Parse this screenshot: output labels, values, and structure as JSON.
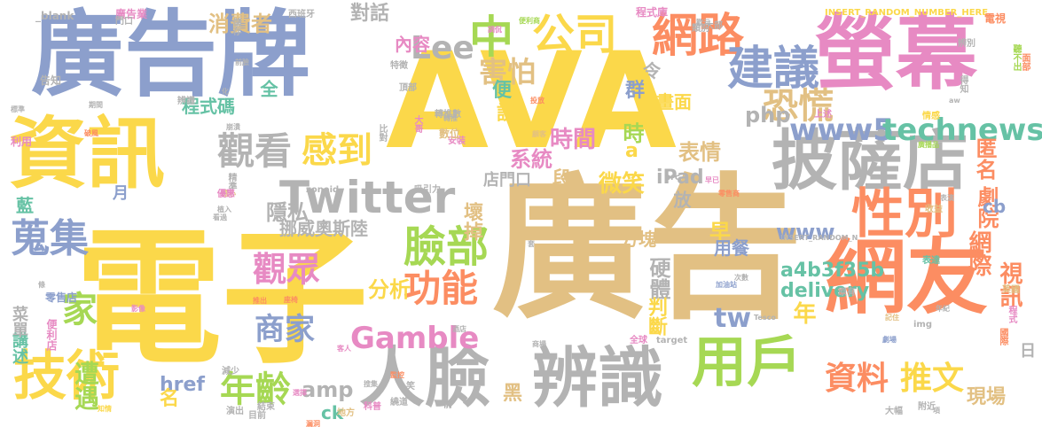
{
  "palette": {
    "blue": "#8c9fcc",
    "yellow": "#fbd84a",
    "tan": "#e2c083",
    "pink": "#e78ac3",
    "orange": "#fc8d62",
    "green": "#a6d854",
    "teal": "#66c2a5",
    "gray": "#b3b3b3"
  },
  "words": [
    {
      "text": "AVA",
      "color": "yellow"
    },
    {
      "text": "廣告",
      "color": "tan"
    },
    {
      "text": "電子",
      "color": "yellow"
    },
    {
      "text": "廣告牌",
      "color": "blue"
    },
    {
      "text": "資訊",
      "color": "yellow"
    },
    {
      "text": "螢幕",
      "color": "pink"
    },
    {
      "text": "網友",
      "color": "orange"
    },
    {
      "text": "人臉",
      "color": "gray"
    },
    {
      "text": "辨識",
      "color": "gray"
    },
    {
      "text": "披薩店",
      "color": "gray"
    },
    {
      "text": "Twitter",
      "color": "gray"
    },
    {
      "text": "技術",
      "color": "yellow"
    },
    {
      "text": "用戶",
      "color": "green"
    },
    {
      "text": "性別",
      "color": "orange"
    },
    {
      "text": "網路",
      "color": "orange"
    },
    {
      "text": "建議",
      "color": "blue"
    },
    {
      "text": "公司",
      "color": "yellow"
    },
    {
      "text": "觀看",
      "color": "gray"
    },
    {
      "text": "感到",
      "color": "yellow"
    },
    {
      "text": "蒐集",
      "color": "blue"
    },
    {
      "text": "家",
      "color": "green"
    },
    {
      "text": "臉部",
      "color": "green"
    },
    {
      "text": "觀眾",
      "color": "pink"
    },
    {
      "text": "功能",
      "color": "orange"
    },
    {
      "text": "商家",
      "color": "blue"
    },
    {
      "text": "年齡",
      "color": "green"
    },
    {
      "text": "資料",
      "color": "orange"
    },
    {
      "text": "推文",
      "color": "yellow"
    },
    {
      "text": "Gamble",
      "color": "pink"
    },
    {
      "text": "www5",
      "color": "blue"
    },
    {
      "text": "technews",
      "color": "teal"
    },
    {
      "text": "中",
      "color": "green"
    },
    {
      "text": "Lee",
      "color": "gray"
    },
    {
      "text": "恐慌",
      "color": "tan"
    },
    {
      "text": "消費者",
      "color": "tan"
    },
    {
      "text": "害怕",
      "color": "tan"
    },
    {
      "text": "時間",
      "color": "pink"
    },
    {
      "text": "內容",
      "color": "pink"
    },
    {
      "text": "對話",
      "color": "gray"
    },
    {
      "text": "php",
      "color": "gray"
    },
    {
      "text": "隱私",
      "color": "gray"
    },
    {
      "text": "系統",
      "color": "pink"
    },
    {
      "text": "微笑",
      "color": "yellow"
    },
    {
      "text": "表情",
      "color": "tan"
    },
    {
      "text": "匿名",
      "color": "orange"
    },
    {
      "text": "劇院",
      "color": "orange"
    },
    {
      "text": "iPad",
      "color": "gray"
    },
    {
      "text": "店門口",
      "color": "gray"
    },
    {
      "text": "挪威奧斯陸",
      "color": "gray"
    },
    {
      "text": "www",
      "color": "blue"
    },
    {
      "text": "cb",
      "color": "blue"
    },
    {
      "text": "網際",
      "color": "orange"
    },
    {
      "text": "a4b3f35b",
      "color": "teal"
    },
    {
      "text": "delivery",
      "color": "teal"
    },
    {
      "text": "視訊",
      "color": "orange"
    },
    {
      "text": "分析",
      "color": "yellow"
    },
    {
      "text": "硬體",
      "color": "gray"
    },
    {
      "text": "判斷",
      "color": "yellow"
    },
    {
      "text": "tw",
      "color": "blue"
    },
    {
      "text": "年",
      "color": "yellow"
    },
    {
      "text": "amp",
      "color": "gray"
    },
    {
      "text": "href",
      "color": "blue"
    },
    {
      "text": "名",
      "color": "yellow"
    },
    {
      "text": "ck",
      "color": "teal"
    },
    {
      "text": "黑",
      "color": "tan"
    },
    {
      "text": "現場",
      "color": "tan"
    },
    {
      "text": "遭遇",
      "color": "green"
    },
    {
      "text": "講述",
      "color": "teal"
    },
    {
      "text": "菜單",
      "color": "gray"
    },
    {
      "text": "程式碼",
      "color": "teal"
    },
    {
      "text": "早",
      "color": "yellow"
    },
    {
      "text": "用餐",
      "color": "blue"
    },
    {
      "text": "方塊",
      "color": "tan"
    },
    {
      "text": "壞掉",
      "color": "tan"
    },
    {
      "text": "放",
      "color": "gray"
    },
    {
      "text": "段",
      "color": "tan"
    },
    {
      "text": "a",
      "color": "yellow"
    },
    {
      "text": "時",
      "color": "green"
    },
    {
      "text": "說",
      "color": "yellow"
    },
    {
      "text": "便",
      "color": "teal"
    },
    {
      "text": "群",
      "color": "blue"
    },
    {
      "text": "令",
      "color": "gray"
    },
    {
      "text": "畫面",
      "color": "yellow"
    },
    {
      "text": "全",
      "color": "teal"
    },
    {
      "text": "藍",
      "color": "teal"
    },
    {
      "text": "月",
      "color": "blue"
    },
    {
      "text": "日",
      "color": "gray"
    },
    {
      "text": "n",
      "color": "blue"
    },
    {
      "text": "zoneid",
      "color": "gray"
    },
    {
      "text": "src",
      "color": "gray"
    },
    {
      "text": "img",
      "color": "gray"
    },
    {
      "text": "target",
      "color": "gray"
    },
    {
      "text": "_blank",
      "color": "gray"
    },
    {
      "text": "INSERT_RANDOM_NUMBER_HERE",
      "color": "yellow"
    },
    {
      "text": "INSERT_RANDOM_N",
      "color": "gray"
    },
    {
      "text": "Tesco",
      "color": "gray"
    },
    {
      "text": "aw",
      "color": "gray"
    },
    {
      "text": "程式庫",
      "color": "pink"
    },
    {
      "text": "廣告業",
      "color": "pink"
    },
    {
      "text": "西班牙",
      "color": "gray"
    },
    {
      "text": "轉推數",
      "color": "gray"
    },
    {
      "text": "吸引力",
      "color": "gray"
    },
    {
      "text": "加油站",
      "color": "blue"
    },
    {
      "text": "便利店",
      "color": "pink"
    },
    {
      "text": "零售商",
      "color": "orange"
    },
    {
      "text": "零售店",
      "color": "blue"
    },
    {
      "text": "便利商",
      "color": "green"
    },
    {
      "text": "廣播品",
      "color": "green"
    },
    {
      "text": "次數",
      "color": "gray"
    },
    {
      "text": "記住",
      "color": "tan"
    },
    {
      "text": "劇場",
      "color": "blue"
    },
    {
      "text": "年紀",
      "color": "gray"
    },
    {
      "text": "電視",
      "color": "orange"
    },
    {
      "text": "聽不出",
      "color": "green"
    },
    {
      "text": "面部",
      "color": "orange"
    },
    {
      "text": "辨別",
      "color": "gray"
    },
    {
      "text": "得知",
      "color": "gray"
    },
    {
      "text": "情感",
      "color": "yellow"
    },
    {
      "text": "上述",
      "color": "pink"
    },
    {
      "text": "投放",
      "color": "orange"
    },
    {
      "text": "標準",
      "color": "gray"
    },
    {
      "text": "利用",
      "color": "pink"
    },
    {
      "text": "破風",
      "color": "orange"
    },
    {
      "text": "收益",
      "color": "tan"
    },
    {
      "text": "表演",
      "color": "gray"
    },
    {
      "text": "表達",
      "color": "teal"
    },
    {
      "text": "英國",
      "color": "tan"
    },
    {
      "text": "程式",
      "color": "pink"
    },
    {
      "text": "國際",
      "color": "orange"
    },
    {
      "text": "推出",
      "color": "orange"
    },
    {
      "text": "客人",
      "color": "pink"
    },
    {
      "text": "監控",
      "color": "orange"
    },
    {
      "text": "影像",
      "color": "pink"
    },
    {
      "text": "搜集",
      "color": "gray"
    },
    {
      "text": "知情",
      "color": "yellow"
    },
    {
      "text": "結束",
      "color": "gray"
    },
    {
      "text": "演出",
      "color": "gray"
    },
    {
      "text": "地方",
      "color": "tan"
    },
    {
      "text": "目前",
      "color": "gray"
    },
    {
      "text": "漏洞",
      "color": "orange"
    },
    {
      "text": "大幅",
      "color": "gray"
    },
    {
      "text": "選擇",
      "color": "pink"
    },
    {
      "text": "全球",
      "color": "pink"
    },
    {
      "text": "商場",
      "color": "gray"
    },
    {
      "text": "酒店",
      "color": "gray"
    },
    {
      "text": "特徵",
      "color": "gray"
    },
    {
      "text": "頂部",
      "color": "gray"
    },
    {
      "text": "前臉",
      "color": "gray"
    },
    {
      "text": "告知",
      "color": "gray"
    },
    {
      "text": "辨識",
      "color": "gray"
    },
    {
      "text": "期間",
      "color": "gray"
    },
    {
      "text": "顧客",
      "color": "tan"
    },
    {
      "text": "附近",
      "color": "gray"
    },
    {
      "text": "崩潰",
      "color": "gray"
    },
    {
      "text": "擔心",
      "color": "tan"
    },
    {
      "text": "植入",
      "color": "gray"
    },
    {
      "text": "大哥",
      "color": "pink"
    },
    {
      "text": "座椅",
      "color": "orange"
    },
    {
      "text": "安裝",
      "color": "pink"
    },
    {
      "text": "比對",
      "color": "gray"
    },
    {
      "text": "轉推",
      "color": "gray"
    },
    {
      "text": "數位",
      "color": "tan"
    },
    {
      "text": "調侃",
      "color": "pink"
    },
    {
      "text": "精準",
      "color": "gray"
    },
    {
      "text": "優惠",
      "color": "pink"
    },
    {
      "text": "減少",
      "color": "gray"
    },
    {
      "text": "科普",
      "color": "pink"
    },
    {
      "text": "繞道",
      "color": "gray"
    },
    {
      "text": "門口",
      "color": "gray"
    },
    {
      "text": "儲存",
      "color": "gray"
    },
    {
      "text": "笑",
      "color": "gray"
    },
    {
      "text": "前",
      "color": "gray"
    },
    {
      "text": "套",
      "color": "gray"
    },
    {
      "text": "太",
      "color": "tan"
    },
    {
      "text": "原有",
      "color": "gray"
    },
    {
      "text": "看過",
      "color": "gray"
    },
    {
      "text": "化",
      "color": "gray"
    },
    {
      "text": "項",
      "color": "gray"
    },
    {
      "text": "條",
      "color": "gray"
    },
    {
      "text": "大部",
      "color": "gray"
    },
    {
      "text": "歡元",
      "color": "gray"
    },
    {
      "text": "早已",
      "color": "pink"
    },
    {
      "text": "類別",
      "color": "gray"
    },
    {
      "text": "警告",
      "color": "gray"
    },
    {
      "text": "揭露",
      "color": "gray"
    },
    {
      "text": "蒐",
      "color": "gray"
    }
  ]
}
